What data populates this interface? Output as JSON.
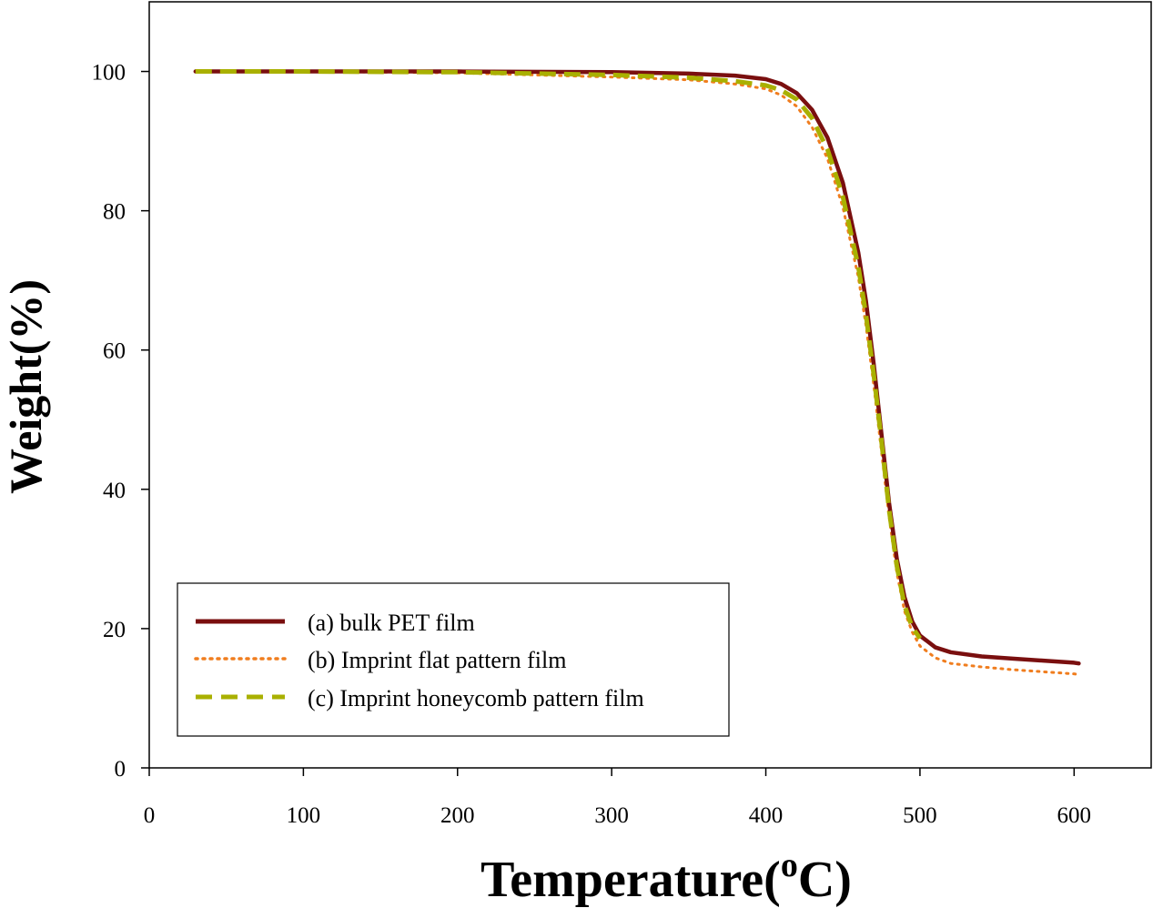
{
  "chart_data": {
    "type": "line",
    "xlabel": "Temperature(",
    "xlabel_sup": "o",
    "xlabel_unit": "C)",
    "ylabel": "Weight(%)",
    "xlim": [
      0,
      650
    ],
    "ylim": [
      0,
      110
    ],
    "xticks": [
      0,
      100,
      200,
      300,
      400,
      500,
      600
    ],
    "yticks": [
      0,
      20,
      40,
      60,
      80,
      100
    ],
    "grid": false,
    "legend_position": "lower-left",
    "series": [
      {
        "name": "(a) bulk PET film",
        "color": "#7a0f0f",
        "style": "solid",
        "x": [
          30,
          100,
          200,
          300,
          350,
          380,
          400,
          410,
          420,
          430,
          440,
          450,
          460,
          465,
          470,
          475,
          480,
          485,
          490,
          495,
          500,
          510,
          520,
          540,
          560,
          580,
          600,
          603
        ],
        "y": [
          100,
          100,
          100,
          99.9,
          99.7,
          99.4,
          98.9,
          98.2,
          96.9,
          94.5,
          90.5,
          84,
          74,
          67,
          58,
          48,
          38,
          30,
          24.5,
          21,
          19,
          17.3,
          16.6,
          16,
          15.7,
          15.4,
          15.1,
          15
        ]
      },
      {
        "name": "(b) Imprint flat pattern film",
        "color": "#f07d1e",
        "style": "dotted",
        "x": [
          30,
          100,
          200,
          300,
          350,
          380,
          400,
          410,
          420,
          430,
          440,
          450,
          460,
          465,
          470,
          475,
          480,
          485,
          490,
          495,
          500,
          510,
          520,
          540,
          560,
          580,
          600,
          603
        ],
        "y": [
          100,
          100,
          99.8,
          99.2,
          98.8,
          98.2,
          97.5,
          96.6,
          95,
          92,
          87.5,
          80.5,
          70.5,
          63.5,
          55,
          45.5,
          36,
          28,
          22.5,
          19.5,
          17.5,
          15.8,
          15,
          14.5,
          14.1,
          13.8,
          13.5,
          13.4
        ]
      },
      {
        "name": "(c) Imprint honeycomb pattern film",
        "color": "#a9b000",
        "style": "dashed",
        "x": [
          30,
          100,
          200,
          300,
          350,
          380,
          400,
          410,
          420,
          430,
          440,
          450,
          460,
          465,
          470,
          475,
          480,
          485,
          490,
          495,
          500
        ],
        "y": [
          100,
          100,
          99.9,
          99.5,
          99.1,
          98.6,
          98,
          97.3,
          96,
          93.3,
          88.8,
          82,
          72,
          65,
          56.5,
          47,
          37,
          29,
          23.3,
          20.2,
          18.6
        ]
      }
    ]
  }
}
